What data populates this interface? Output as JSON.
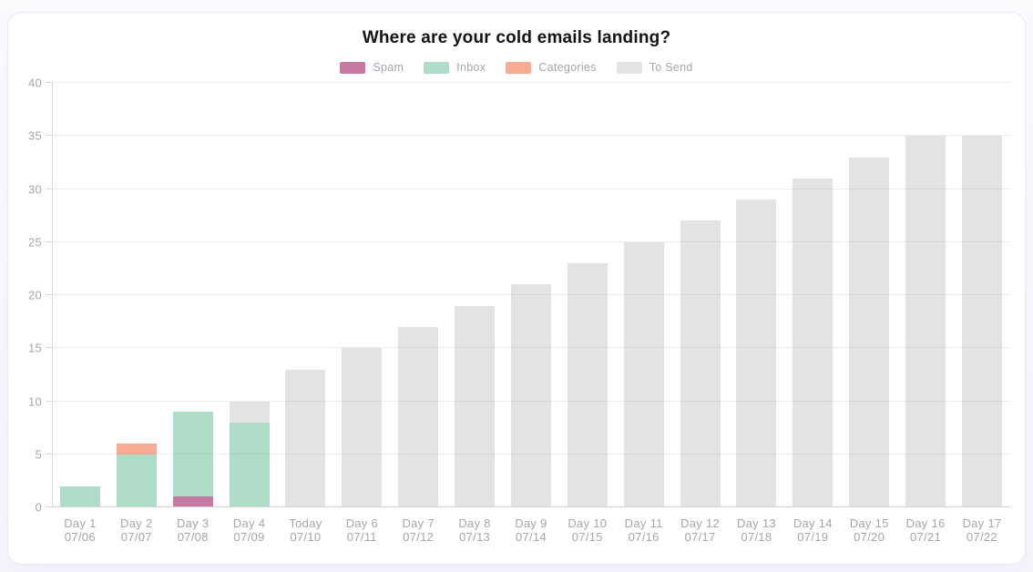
{
  "chart_data": {
    "type": "bar",
    "stacked": true,
    "title": "Where are your cold emails landing?",
    "legend_position": "top",
    "grid": true,
    "ylim": [
      0,
      40
    ],
    "ytick_step": 5,
    "yticks": [
      0,
      5,
      10,
      15,
      20,
      25,
      30,
      35,
      40
    ],
    "categories": [
      {
        "label": "Day 1",
        "date": "07/06"
      },
      {
        "label": "Day 2",
        "date": "07/07"
      },
      {
        "label": "Day 3",
        "date": "07/08"
      },
      {
        "label": "Day 4",
        "date": "07/09"
      },
      {
        "label": "Today",
        "date": "07/10"
      },
      {
        "label": "Day 6",
        "date": "07/11"
      },
      {
        "label": "Day 7",
        "date": "07/12"
      },
      {
        "label": "Day 8",
        "date": "07/13"
      },
      {
        "label": "Day 9",
        "date": "07/14"
      },
      {
        "label": "Day 10",
        "date": "07/15"
      },
      {
        "label": "Day 11",
        "date": "07/16"
      },
      {
        "label": "Day 12",
        "date": "07/17"
      },
      {
        "label": "Day 13",
        "date": "07/18"
      },
      {
        "label": "Day 14",
        "date": "07/19"
      },
      {
        "label": "Day 15",
        "date": "07/20"
      },
      {
        "label": "Day 16",
        "date": "07/21"
      },
      {
        "label": "Day 17",
        "date": "07/22"
      }
    ],
    "series": [
      {
        "name": "Spam",
        "color": "#C679A1",
        "values": [
          0,
          0,
          1,
          0,
          0,
          0,
          0,
          0,
          0,
          0,
          0,
          0,
          0,
          0,
          0,
          0,
          0
        ]
      },
      {
        "name": "Inbox",
        "color": "#AFDCC7",
        "values": [
          2,
          5,
          8,
          8,
          0,
          0,
          0,
          0,
          0,
          0,
          0,
          0,
          0,
          0,
          0,
          0,
          0
        ]
      },
      {
        "name": "Categories",
        "color": "#F7AB94",
        "values": [
          0,
          1,
          0,
          0,
          0,
          0,
          0,
          0,
          0,
          0,
          0,
          0,
          0,
          0,
          0,
          0,
          0
        ]
      },
      {
        "name": "To Send",
        "color": "#E3E3E3",
        "values": [
          0,
          0,
          0,
          2,
          13,
          15,
          17,
          19,
          21,
          23,
          25,
          27,
          29,
          31,
          33,
          35,
          35
        ]
      }
    ]
  }
}
